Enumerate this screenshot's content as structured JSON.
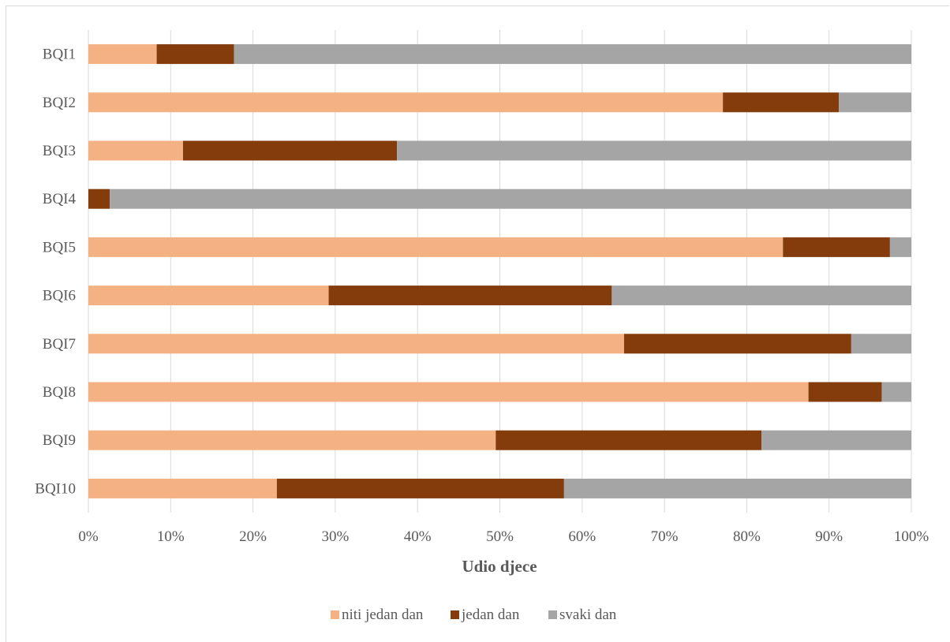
{
  "chart_data": {
    "type": "bar",
    "orientation": "horizontal",
    "stacked": "percent",
    "title": "",
    "xlabel": "Udio djece",
    "ylabel": "",
    "xlim": [
      0,
      100
    ],
    "x_ticks": [
      "0%",
      "10%",
      "20%",
      "30%",
      "40%",
      "50%",
      "60%",
      "70%",
      "80%",
      "90%",
      "100%"
    ],
    "grid": true,
    "legend_position": "bottom",
    "categories": [
      "BQI1",
      "BQI2",
      "BQI3",
      "BQI4",
      "BQI5",
      "BQI6",
      "BQI7",
      "BQI8",
      "BQI9",
      "BQI10"
    ],
    "series": [
      {
        "name": "niti jedan dan",
        "color": "#f4b183",
        "values": [
          8.3,
          77.1,
          11.5,
          0.0,
          84.4,
          29.2,
          65.1,
          87.5,
          49.5,
          22.9
        ]
      },
      {
        "name": "jedan dan",
        "color": "#843c0c",
        "values": [
          9.4,
          14.1,
          26.0,
          2.6,
          13.0,
          34.4,
          27.6,
          8.9,
          32.3,
          34.9
        ]
      },
      {
        "name": "svaki dan",
        "color": "#a5a5a5",
        "values": [
          82.3,
          8.8,
          62.5,
          97.4,
          2.6,
          36.4,
          7.3,
          3.6,
          18.2,
          42.2
        ]
      }
    ]
  }
}
